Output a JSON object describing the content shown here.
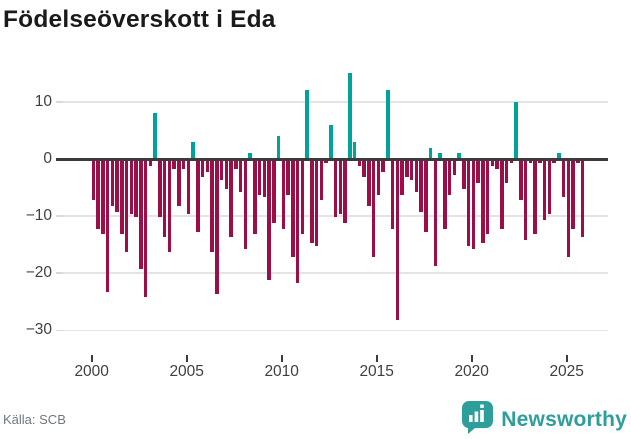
{
  "title": "Födelseöverskott i Eda",
  "source": "Källa: SCB",
  "branding": {
    "name": "Newsworthy",
    "icon": "bar-chart-speech-bubble"
  },
  "colors": {
    "positive_bar": "#00a39b",
    "negative_bar": "#9b0e47",
    "brand_teal": "#2e9e9b",
    "grid": "#e4e4e4",
    "zero_axis": "#3b3b3b",
    "title_text": "#1a1a1a",
    "tick_text": "#3f3f3f",
    "source_text": "#6f7780"
  },
  "chart_data": {
    "type": "bar",
    "title": "Födelseöverskott i Eda",
    "frequency": "quarterly",
    "start_year": 2000,
    "end_period": "2025 Q4",
    "grid": true,
    "legend": false,
    "ylim": [
      -32,
      16
    ],
    "yticks": [
      10,
      0,
      -10,
      -20,
      -30
    ],
    "y_tick_labels": [
      "10",
      "0",
      "−10",
      "−20",
      "−30"
    ],
    "x_tick_years": [
      2000,
      2005,
      2010,
      2015,
      2020,
      2025
    ],
    "x_tick_labels": [
      "2000",
      "2005",
      "2010",
      "2015",
      "2020",
      "2025"
    ],
    "values": [
      -7,
      -12,
      -13,
      -23,
      -8,
      -9,
      -13,
      -16,
      -9.5,
      -10,
      -19,
      -24,
      -1,
      8,
      -10,
      -13.5,
      -16,
      -1.5,
      -8,
      -1.5,
      -9.5,
      3,
      -12.5,
      -3,
      -2,
      -16,
      -23.5,
      -3.5,
      -5,
      -13.5,
      -1.5,
      -5.5,
      -15.5,
      1,
      -13,
      -6,
      -6.5,
      -21,
      -11,
      4,
      -12,
      -6,
      -17,
      -21.5,
      -13,
      12,
      -14.5,
      -15,
      -7,
      -0.5,
      6,
      -10,
      -9.5,
      -11,
      15,
      3,
      -1,
      -3,
      -8,
      -17,
      -6,
      -2,
      12,
      -12,
      -28,
      -6,
      -3,
      -3.5,
      -5.5,
      -9,
      -12.5,
      2,
      -18.5,
      1,
      -12,
      -6,
      -2.5,
      1,
      -5,
      -15,
      -15.5,
      -4,
      -14.5,
      -13,
      -1,
      -1.5,
      -12,
      -4,
      -0.5,
      10,
      -7,
      -14,
      -0.5,
      -13,
      -0.5,
      -10.5,
      -9.5,
      -0.5,
      1,
      -6.5,
      -17,
      -12,
      -0.5,
      -13.5
    ]
  }
}
